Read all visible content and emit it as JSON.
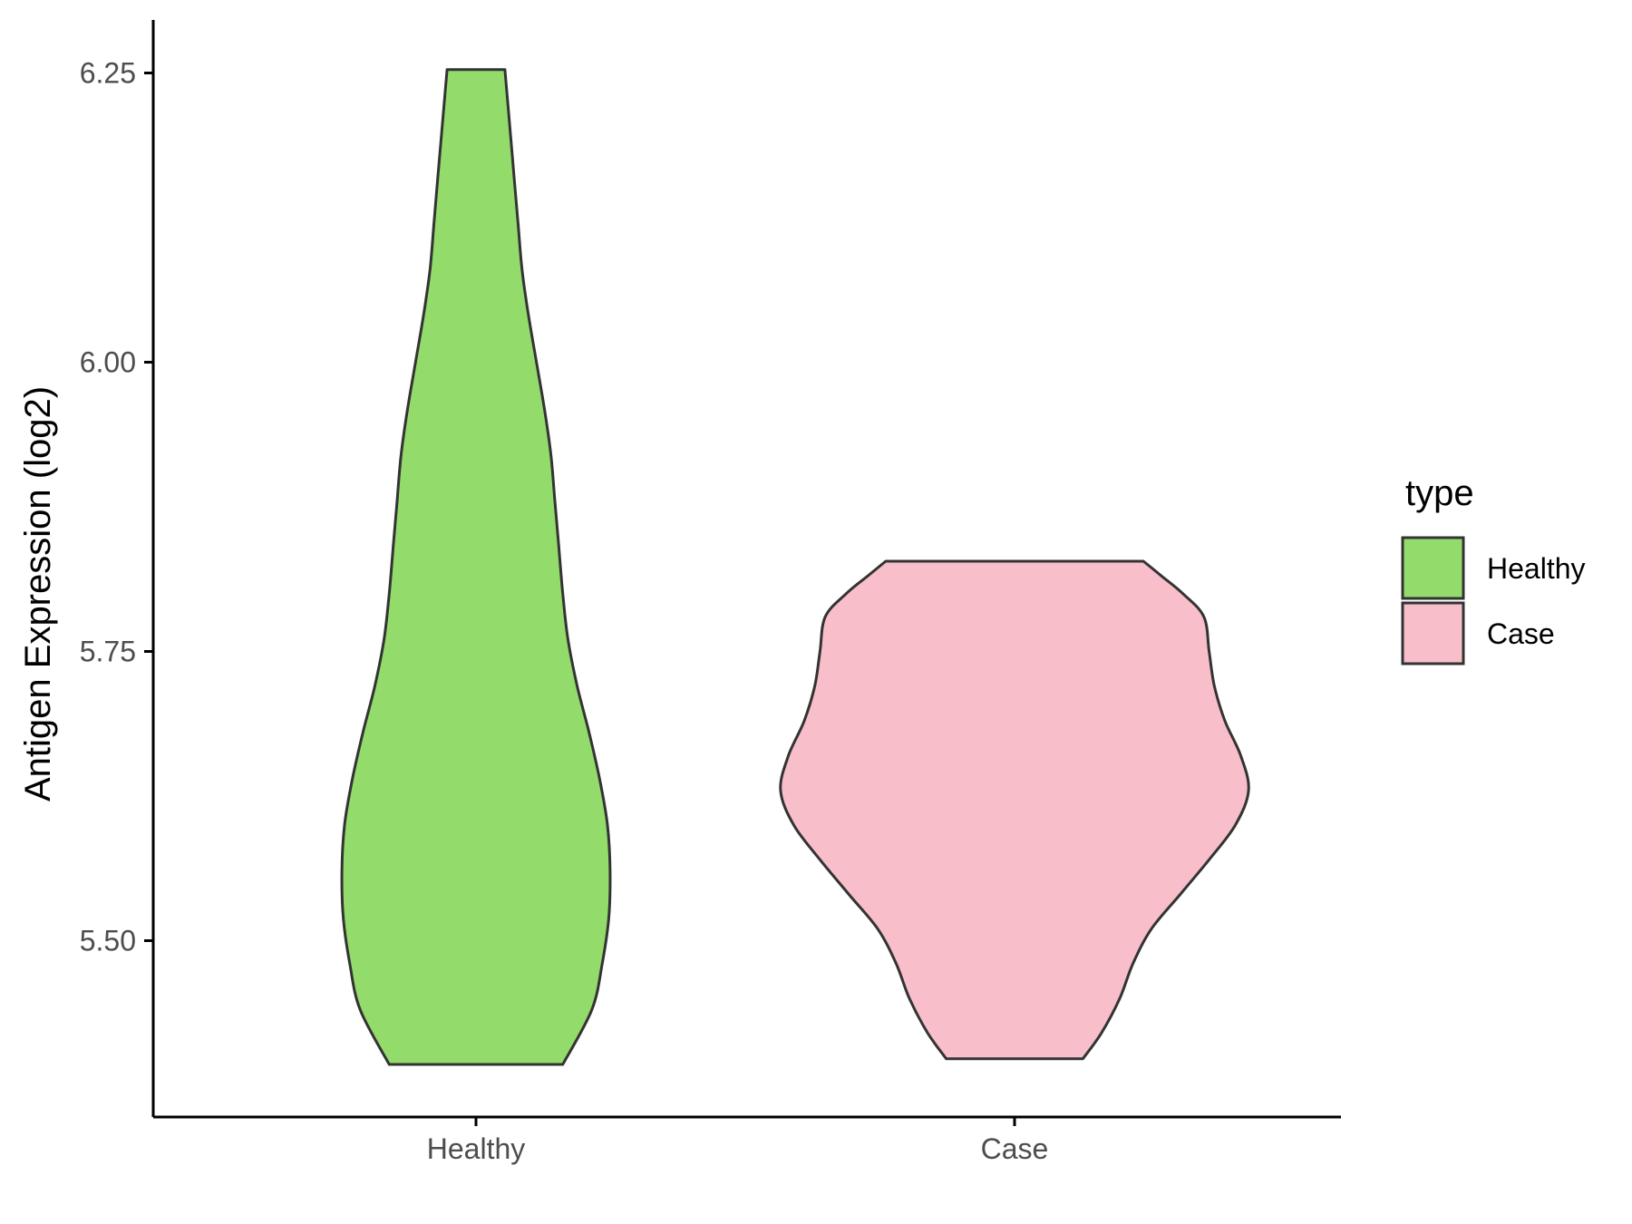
{
  "chart_data": {
    "type": "violin",
    "title": "",
    "xlabel": "",
    "ylabel": "Antigen Expression (log2)",
    "categories": [
      "Healthy",
      "Case"
    ],
    "y_ticks": [
      "5.50",
      "5.75",
      "6.00",
      "6.25"
    ],
    "ylim": [
      5.35,
      6.3
    ],
    "grid": false,
    "legend": {
      "title": "type",
      "position": "right",
      "entries": [
        {
          "label": "Healthy",
          "color": "#93dc6b"
        },
        {
          "label": "Case",
          "color": "#f8bfcb"
        }
      ]
    },
    "series": [
      {
        "category": "Healthy",
        "color": "#93dc6b",
        "min": 5.393,
        "max": 6.253,
        "density_profile": [
          [
            5.393,
            0.33
          ],
          [
            5.44,
            0.44
          ],
          [
            5.48,
            0.48
          ],
          [
            5.52,
            0.505
          ],
          [
            5.56,
            0.51
          ],
          [
            5.6,
            0.5
          ],
          [
            5.64,
            0.47
          ],
          [
            5.68,
            0.43
          ],
          [
            5.72,
            0.385
          ],
          [
            5.76,
            0.35
          ],
          [
            5.8,
            0.33
          ],
          [
            5.84,
            0.315
          ],
          [
            5.88,
            0.3
          ],
          [
            5.92,
            0.285
          ],
          [
            5.96,
            0.26
          ],
          [
            6.0,
            0.23
          ],
          [
            6.04,
            0.2
          ],
          [
            6.08,
            0.175
          ],
          [
            6.12,
            0.16
          ],
          [
            6.16,
            0.145
          ],
          [
            6.2,
            0.13
          ],
          [
            6.253,
            0.11
          ]
        ]
      },
      {
        "category": "Case",
        "color": "#f8bfcb",
        "min": 5.398,
        "max": 5.828,
        "density_profile": [
          [
            5.398,
            0.26
          ],
          [
            5.42,
            0.33
          ],
          [
            5.45,
            0.4
          ],
          [
            5.48,
            0.45
          ],
          [
            5.51,
            0.52
          ],
          [
            5.54,
            0.63
          ],
          [
            5.57,
            0.74
          ],
          [
            5.6,
            0.84
          ],
          [
            5.63,
            0.89
          ],
          [
            5.66,
            0.86
          ],
          [
            5.69,
            0.8
          ],
          [
            5.72,
            0.76
          ],
          [
            5.75,
            0.74
          ],
          [
            5.78,
            0.72
          ],
          [
            5.8,
            0.64
          ],
          [
            5.815,
            0.56
          ],
          [
            5.828,
            0.49
          ]
        ]
      }
    ]
  }
}
